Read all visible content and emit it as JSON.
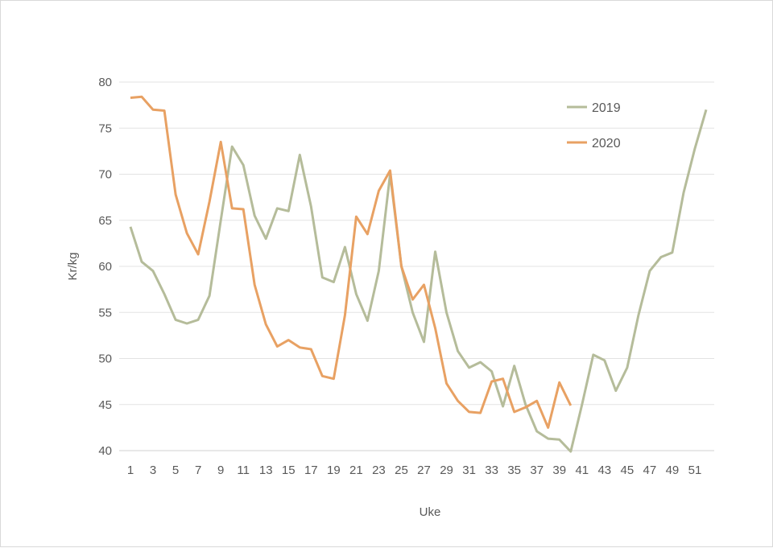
{
  "chart_data": {
    "type": "line",
    "xlabel": "Uke",
    "ylabel": "Kr/kg",
    "ylim": [
      40,
      80
    ],
    "yticks": [
      40,
      45,
      50,
      55,
      60,
      65,
      70,
      75,
      80
    ],
    "xlim": [
      1,
      52
    ],
    "xticks": [
      1,
      3,
      5,
      7,
      9,
      11,
      13,
      15,
      17,
      19,
      21,
      23,
      25,
      27,
      29,
      31,
      33,
      35,
      37,
      39,
      41,
      43,
      45,
      47,
      49,
      51
    ],
    "grid": true,
    "legend_position": "top-right",
    "series": [
      {
        "name": "2019",
        "color": "#b5bc9a",
        "x": [
          1,
          2,
          3,
          4,
          5,
          6,
          7,
          8,
          9,
          10,
          11,
          12,
          13,
          14,
          15,
          16,
          17,
          18,
          19,
          20,
          21,
          22,
          23,
          24,
          25,
          26,
          27,
          28,
          29,
          30,
          31,
          32,
          33,
          34,
          35,
          36,
          37,
          38,
          39,
          40,
          41,
          42,
          43,
          44,
          45,
          46,
          47,
          48,
          49,
          50,
          51,
          52
        ],
        "values": [
          64.3,
          60.5,
          59.5,
          57.0,
          54.2,
          53.8,
          54.2,
          56.8,
          65.0,
          73.0,
          71.0,
          65.5,
          63.0,
          66.3,
          66.0,
          72.1,
          66.5,
          58.8,
          58.3,
          62.1,
          57.0,
          54.1,
          59.5,
          70.0,
          60.0,
          55.0,
          51.8,
          61.6,
          55.0,
          50.8,
          49.0,
          49.6,
          48.6,
          44.8,
          49.2,
          45.0,
          42.1,
          41.3,
          41.2,
          39.9,
          45.0,
          50.4,
          49.8,
          46.5,
          49.0,
          54.7,
          59.5,
          61.0,
          61.5,
          68.0,
          72.8,
          77.0
        ]
      },
      {
        "name": "2020",
        "color": "#e8a163",
        "x": [
          1,
          2,
          3,
          4,
          5,
          6,
          7,
          8,
          9,
          10,
          11,
          12,
          13,
          14,
          15,
          16,
          17,
          18,
          19,
          20,
          21,
          22,
          23,
          24,
          25,
          26,
          27,
          28,
          29,
          30,
          31,
          32,
          33,
          34,
          35,
          36,
          37,
          38,
          39,
          40
        ],
        "values": [
          78.3,
          78.4,
          77.0,
          76.9,
          67.8,
          63.6,
          61.3,
          67.0,
          73.5,
          66.3,
          66.2,
          58.0,
          53.7,
          51.3,
          52.0,
          51.2,
          51.0,
          48.1,
          47.8,
          54.7,
          65.4,
          63.5,
          68.2,
          70.4,
          60.0,
          56.4,
          58.0,
          53.3,
          47.3,
          45.4,
          44.2,
          44.1,
          47.5,
          47.8,
          44.2,
          44.7,
          45.4,
          42.5,
          47.4,
          44.9
        ]
      }
    ]
  }
}
